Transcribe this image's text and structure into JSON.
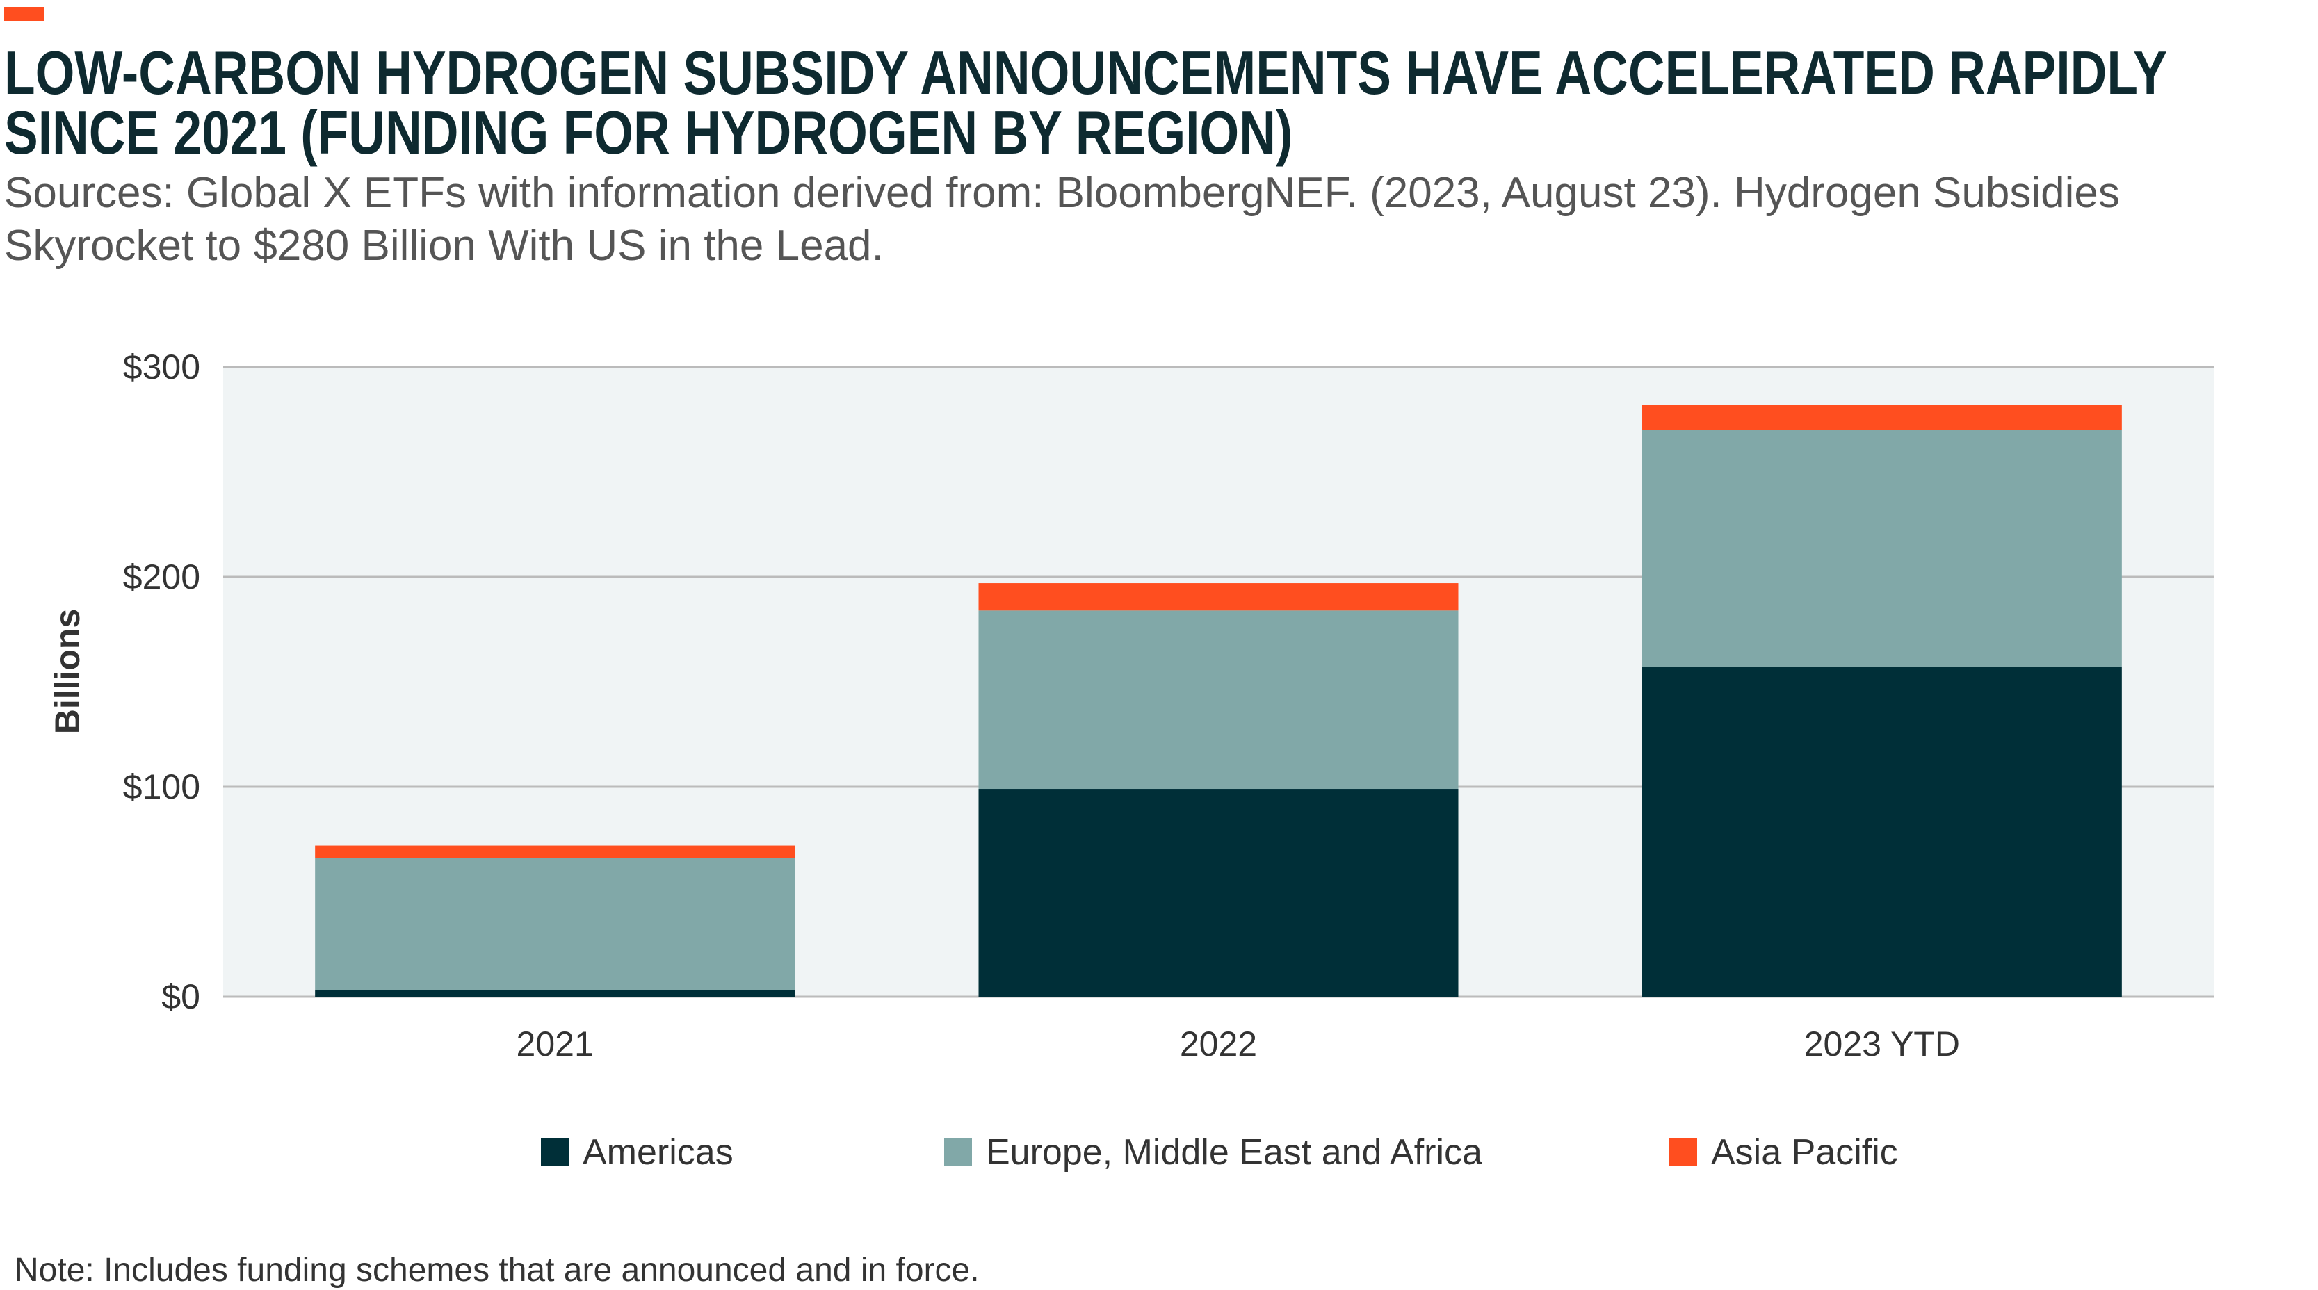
{
  "title_lines": [
    "LOW-CARBON HYDROGEN SUBSIDY ANNOUNCEMENTS HAVE ACCELERATED RAPIDLY",
    "SINCE 2021 (FUNDING FOR HYDROGEN BY REGION)"
  ],
  "source": "Sources: Global X ETFs with information derived from: BloombergNEF. (2023, August 23). Hydrogen Subsidies Skyrocket to $280 Billion With US in the Lead.",
  "note": "Note: Includes funding schemes that are announced and in force.",
  "colors": {
    "accent": "#FF4E1F",
    "americas": "#002F38",
    "emea": "#81A8A8",
    "apac": "#FF4E1F",
    "plot_bg": "#F0F4F5"
  },
  "chart_data": {
    "type": "bar",
    "stacked": true,
    "categories": [
      "2021",
      "2022",
      "2023 YTD"
    ],
    "series": [
      {
        "name": "Americas",
        "values": [
          3,
          99,
          157
        ]
      },
      {
        "name": "Europe, Middle East and Africa",
        "values": [
          63,
          85,
          113
        ]
      },
      {
        "name": "Asia Pacific",
        "values": [
          6,
          13,
          12
        ]
      }
    ],
    "ylabel": "Billions",
    "ylim": [
      0,
      300
    ],
    "yticks": [
      "$0",
      "$100",
      "$200",
      "$300"
    ],
    "grid": true,
    "legend": "bottom"
  }
}
